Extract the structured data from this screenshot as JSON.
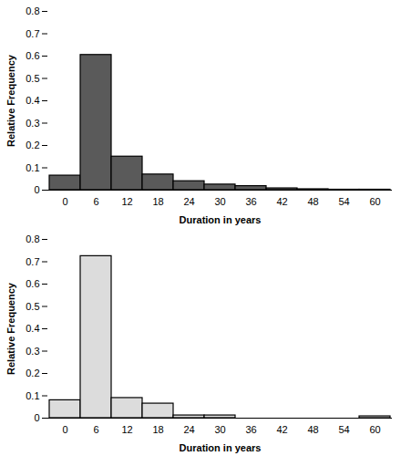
{
  "chart_data": [
    {
      "type": "bar",
      "x_label": "Duration in years",
      "y_label": "Relative Frequency",
      "categories": [
        "0",
        "6",
        "12",
        "18",
        "24",
        "30",
        "36",
        "42",
        "48",
        "54",
        "60"
      ],
      "values": [
        0.065,
        0.605,
        0.15,
        0.07,
        0.04,
        0.025,
        0.018,
        0.008,
        0.004,
        0.002,
        0.002
      ],
      "color": "#5a5a5a",
      "ylim": [
        0,
        0.8
      ],
      "yticks": [
        0,
        0.1,
        0.2,
        0.3,
        0.4,
        0.5,
        0.6,
        0.7,
        0.8
      ]
    },
    {
      "type": "bar",
      "x_label": "Duration in years",
      "y_label": "Relative Frequency",
      "categories": [
        "0",
        "6",
        "12",
        "18",
        "24",
        "30",
        "36",
        "42",
        "48",
        "54",
        "60"
      ],
      "values": [
        0.08,
        0.725,
        0.09,
        0.065,
        0.012,
        0.012,
        0,
        0,
        0,
        0,
        0.008
      ],
      "color": "#dcdcdc",
      "ylim": [
        0,
        0.8
      ],
      "yticks": [
        0,
        0.1,
        0.2,
        0.3,
        0.4,
        0.5,
        0.6,
        0.7,
        0.8
      ]
    }
  ]
}
